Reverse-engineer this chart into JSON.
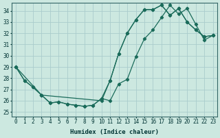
{
  "xlabel": "Humidex (Indice chaleur)",
  "bg_color": "#cce8e0",
  "grid_color": "#aacccc",
  "line_color": "#1a6b5a",
  "xlim": [
    -0.5,
    23.5
  ],
  "ylim": [
    24.6,
    34.7
  ],
  "yticks": [
    25,
    26,
    27,
    28,
    29,
    30,
    31,
    32,
    33,
    34
  ],
  "xticks": [
    0,
    1,
    2,
    3,
    4,
    5,
    6,
    7,
    8,
    9,
    10,
    11,
    12,
    13,
    14,
    15,
    16,
    17,
    18,
    19,
    20,
    21,
    22,
    23
  ],
  "series1_x": [
    0,
    1,
    2,
    3,
    10,
    11,
    12,
    13,
    14,
    15,
    16,
    17,
    18,
    19,
    20,
    21,
    22,
    23
  ],
  "series1_y": [
    29.0,
    27.8,
    27.2,
    26.5,
    26.0,
    27.8,
    30.2,
    32.0,
    33.2,
    34.1,
    34.1,
    34.5,
    33.6,
    34.2,
    33.0,
    32.3,
    31.7,
    31.8
  ],
  "series2_x": [
    0,
    1,
    2,
    3,
    4,
    5,
    6,
    7,
    8,
    9,
    10,
    11,
    12,
    13,
    14,
    15,
    16,
    17,
    18,
    19,
    20,
    21,
    22,
    23
  ],
  "series2_y": [
    29.0,
    27.8,
    27.2,
    26.5,
    25.8,
    25.9,
    25.7,
    25.6,
    25.5,
    25.6,
    26.2,
    27.8,
    30.2,
    32.0,
    33.2,
    34.1,
    34.1,
    34.5,
    33.6,
    34.2,
    33.0,
    32.3,
    31.7,
    31.8
  ],
  "series3_x": [
    0,
    3,
    4,
    5,
    6,
    7,
    8,
    9,
    10,
    11,
    12,
    13,
    14,
    15,
    16,
    17,
    18,
    19,
    20,
    21,
    22,
    23
  ],
  "series3_y": [
    29.0,
    26.5,
    25.8,
    25.9,
    25.7,
    25.6,
    25.5,
    25.6,
    26.2,
    26.0,
    27.5,
    27.9,
    29.9,
    31.5,
    32.3,
    33.4,
    34.5,
    33.7,
    34.2,
    32.8,
    31.4,
    31.8
  ]
}
